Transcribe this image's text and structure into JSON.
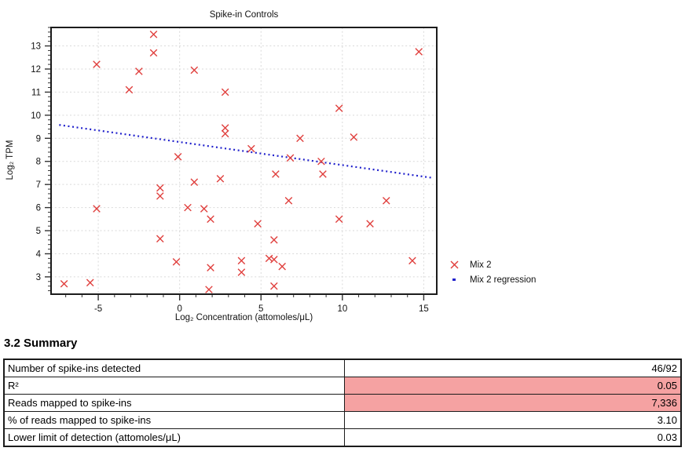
{
  "chart_data": {
    "type": "scatter",
    "title": "Spike-in Controls",
    "xlabel": "Log₂ Concentration (attomoles/μL)",
    "ylabel": "Log₂ TPM",
    "x_range": [
      -7.9,
      15.8
    ],
    "y_range": [
      2.25,
      13.8
    ],
    "x_major_ticks": [
      -5,
      0,
      5,
      10,
      15
    ],
    "y_major_ticks": [
      3,
      4,
      5,
      6,
      7,
      8,
      9,
      10,
      11,
      12,
      13
    ],
    "x_minor_step": 1,
    "y_minor_step": 0.2,
    "grid": true,
    "legend_position": "right-bottom",
    "series": [
      {
        "name": "Mix 2",
        "kind": "scatter",
        "marker": "x",
        "color": "#e0403e",
        "points": [
          [
            -7.1,
            2.7
          ],
          [
            -5.5,
            2.75
          ],
          [
            -5.1,
            12.2
          ],
          [
            -5.1,
            5.95
          ],
          [
            -3.1,
            11.1
          ],
          [
            -2.5,
            11.9
          ],
          [
            -1.6,
            13.5
          ],
          [
            -1.6,
            12.7
          ],
          [
            -1.2,
            6.85
          ],
          [
            -1.2,
            6.5
          ],
          [
            -1.2,
            4.65
          ],
          [
            -0.2,
            3.65
          ],
          [
            -0.1,
            8.2
          ],
          [
            0.5,
            6.0
          ],
          [
            0.9,
            11.95
          ],
          [
            0.9,
            7.1
          ],
          [
            1.5,
            5.95
          ],
          [
            1.8,
            2.45
          ],
          [
            1.9,
            5.5
          ],
          [
            1.9,
            3.4
          ],
          [
            2.5,
            7.25
          ],
          [
            2.8,
            11.0
          ],
          [
            2.8,
            9.45
          ],
          [
            2.8,
            9.2
          ],
          [
            3.8,
            3.7
          ],
          [
            3.8,
            3.2
          ],
          [
            4.4,
            8.55
          ],
          [
            4.8,
            5.3
          ],
          [
            5.5,
            3.8
          ],
          [
            5.8,
            3.75
          ],
          [
            5.8,
            4.6
          ],
          [
            5.8,
            2.6
          ],
          [
            5.9,
            7.45
          ],
          [
            6.3,
            3.45
          ],
          [
            6.7,
            6.3
          ],
          [
            6.8,
            8.15
          ],
          [
            7.4,
            9.0
          ],
          [
            8.7,
            8.0
          ],
          [
            8.8,
            7.45
          ],
          [
            9.8,
            10.3
          ],
          [
            9.8,
            5.5
          ],
          [
            10.7,
            9.05
          ],
          [
            11.7,
            5.3
          ],
          [
            12.7,
            6.3
          ],
          [
            14.3,
            3.7
          ],
          [
            14.7,
            12.75
          ]
        ]
      },
      {
        "name": "Mix 2 regression",
        "kind": "dotted-line",
        "color": "#2222cc",
        "points": [
          [
            -7.4,
            9.58
          ],
          [
            15.6,
            7.28
          ]
        ]
      }
    ],
    "style": {
      "grid_color": "#d9d9d9",
      "frame_color": "#1c1c1c",
      "tick_color": "#333333",
      "tick_label_color": "#111111"
    }
  },
  "summary": {
    "heading": "3.2 Summary",
    "rows": [
      {
        "label": "Number of spike-ins detected",
        "value": "46/92",
        "highlight": false
      },
      {
        "label": "R²",
        "value": "0.05",
        "highlight": true
      },
      {
        "label": "Reads mapped to spike-ins",
        "value": "7,336",
        "highlight": true
      },
      {
        "label": "% of reads mapped to spike-ins",
        "value": "3.10",
        "highlight": false
      },
      {
        "label": "Lower limit of detection (attomoles/μL)",
        "value": "0.03",
        "highlight": false
      }
    ],
    "highlight_color": "#f5a2a2"
  }
}
